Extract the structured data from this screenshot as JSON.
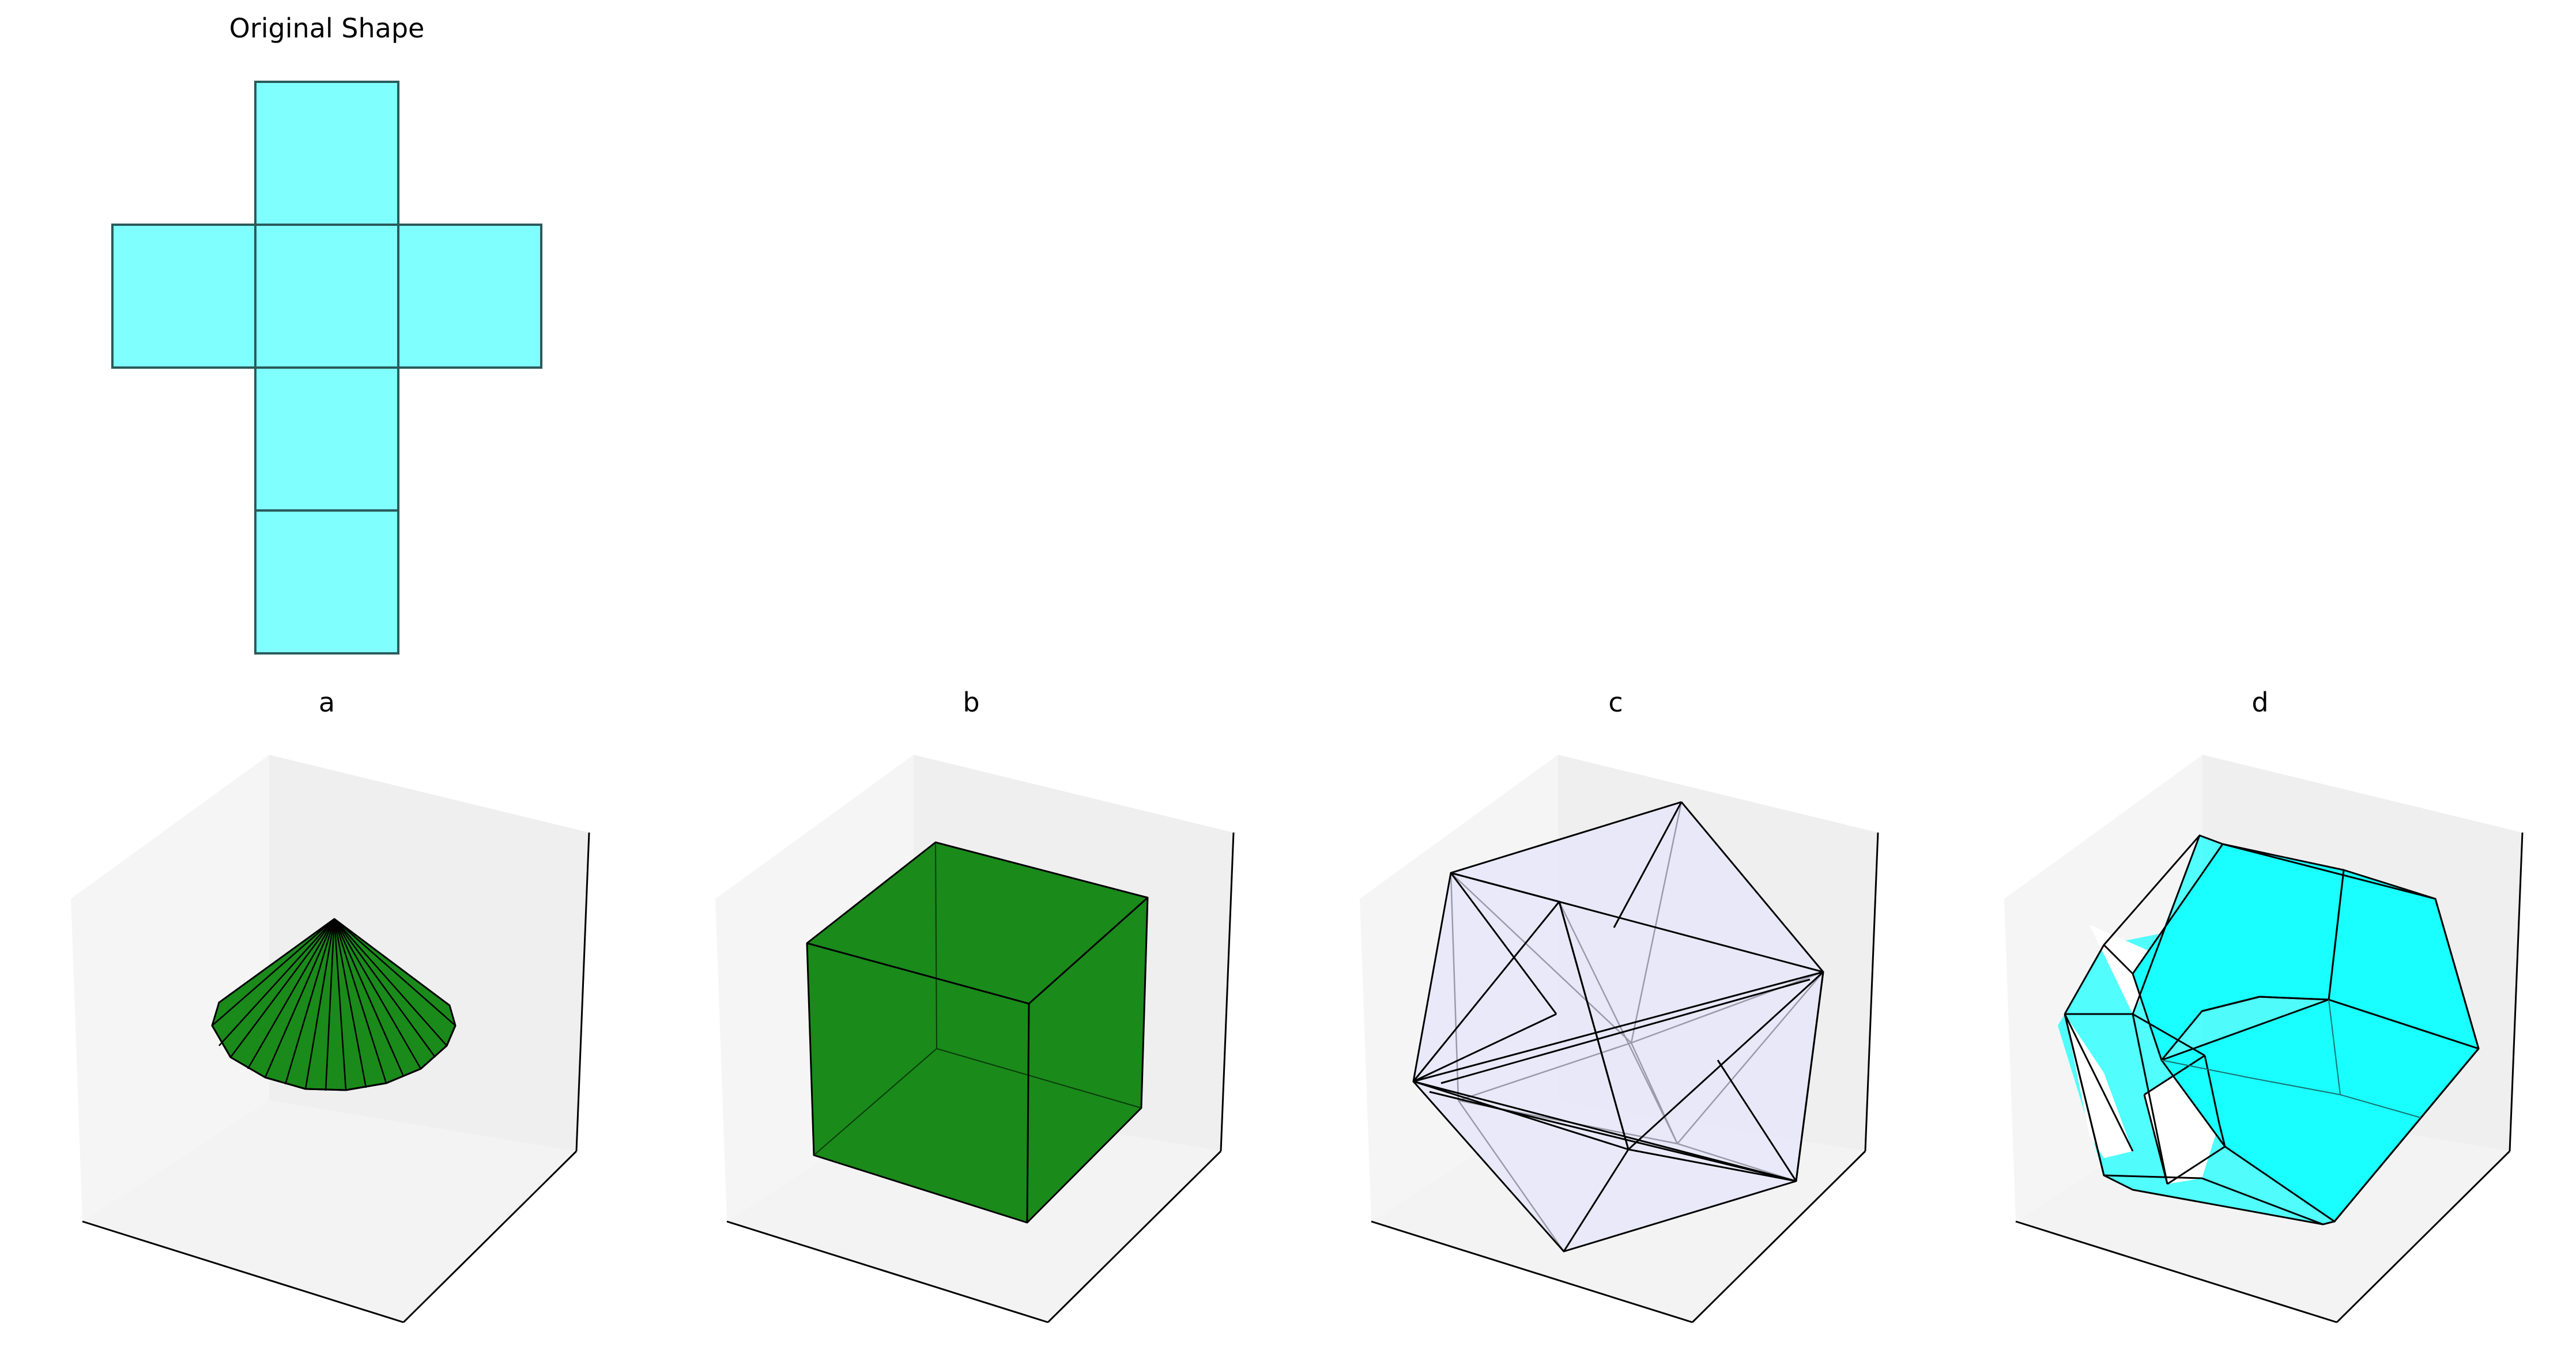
{
  "figure": {
    "original": {
      "title": "Original Shape",
      "face_color": "#80ffff",
      "edge_color": "#2a5a5a"
    },
    "options": [
      {
        "label": "a",
        "shape": "cone",
        "color": "#1a8a1a"
      },
      {
        "label": "b",
        "shape": "cube",
        "color": "#1a8a1a"
      },
      {
        "label": "c",
        "shape": "icosahedron-wireframe",
        "color": "#e6e6fa"
      },
      {
        "label": "d",
        "shape": "truncated-octahedron",
        "color": "#19ffff"
      }
    ],
    "axes_pane_colors": [
      "#f5f5f5",
      "#f0f0f0",
      "#f2f2f2"
    ]
  }
}
